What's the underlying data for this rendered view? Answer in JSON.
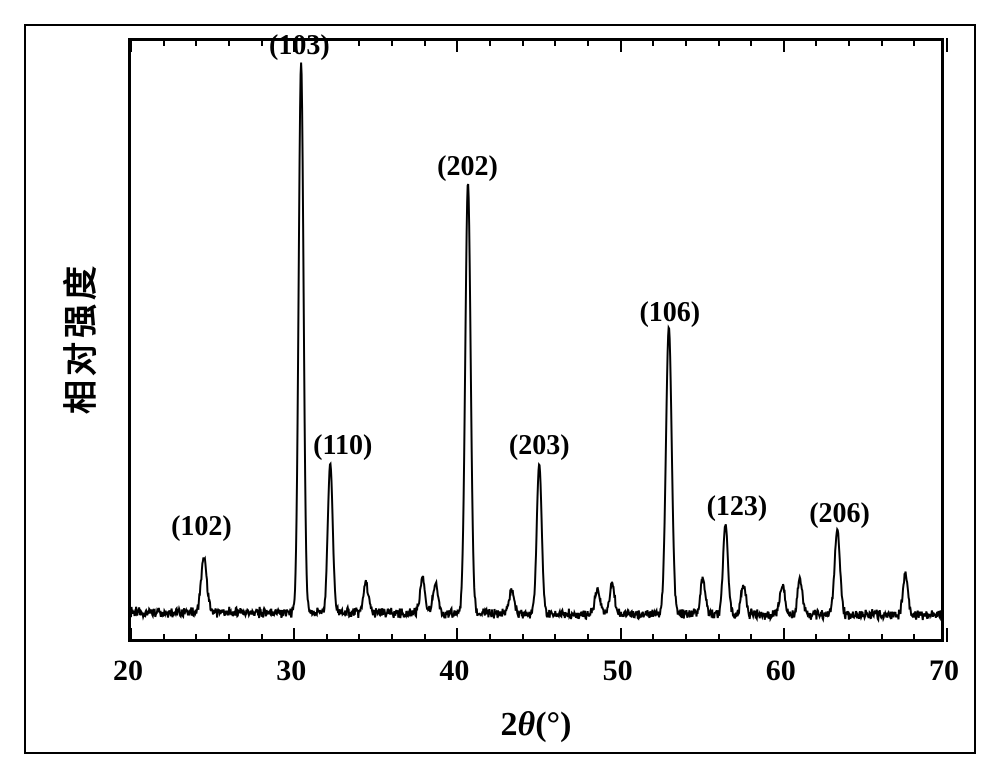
{
  "chart": {
    "type": "line",
    "background_color": "#ffffff",
    "border_color": "#000000",
    "border_width": 3,
    "line_color": "#000000",
    "line_width": 2,
    "font_family": "Times New Roman",
    "axis": {
      "x": {
        "min": 20,
        "max": 70,
        "major_ticks": [
          20,
          30,
          40,
          50,
          60,
          70
        ],
        "minor_step": 2,
        "label": "2θ(°)",
        "label_html_prefix": "2",
        "label_html_theta": "θ",
        "label_html_suffix": "(°)",
        "label_fontsize": 34,
        "tick_fontsize": 30
      },
      "y": {
        "label": "相对强度",
        "label_fontsize": 34,
        "show_ticks": false
      }
    },
    "tick_labels": {
      "20": "20",
      "30": "30",
      "40": "40",
      "50": "50",
      "60": "60",
      "70": "70"
    },
    "baseline": 0.04,
    "noise_amplitude": 0.02,
    "peaks": [
      {
        "x": 24.5,
        "height": 0.09,
        "width": 0.35,
        "label": "(102)",
        "label_y_offset": 50
      },
      {
        "x": 30.5,
        "height": 0.92,
        "width": 0.3,
        "label": "(103)",
        "label_y_offset": 30
      },
      {
        "x": 32.3,
        "height": 0.25,
        "width": 0.3,
        "label": "(110)",
        "label_y_offset": 35,
        "label_x_offset": 14
      },
      {
        "x": 34.5,
        "height": 0.05,
        "width": 0.3,
        "label": null
      },
      {
        "x": 38.0,
        "height": 0.06,
        "width": 0.3,
        "label": null
      },
      {
        "x": 38.8,
        "height": 0.05,
        "width": 0.3,
        "label": null
      },
      {
        "x": 40.8,
        "height": 0.72,
        "width": 0.33,
        "label": "(202)",
        "label_y_offset": 30
      },
      {
        "x": 43.5,
        "height": 0.04,
        "width": 0.3,
        "label": null
      },
      {
        "x": 45.2,
        "height": 0.25,
        "width": 0.3,
        "label": "(203)",
        "label_y_offset": 35
      },
      {
        "x": 48.8,
        "height": 0.04,
        "width": 0.3,
        "label": null
      },
      {
        "x": 49.7,
        "height": 0.05,
        "width": 0.3,
        "label": null
      },
      {
        "x": 53.2,
        "height": 0.48,
        "width": 0.35,
        "label": "(106)",
        "label_y_offset": 30
      },
      {
        "x": 55.3,
        "height": 0.06,
        "width": 0.3,
        "label": null
      },
      {
        "x": 56.7,
        "height": 0.15,
        "width": 0.3,
        "label": "(123)",
        "label_y_offset": 35,
        "label_x_offset": 10
      },
      {
        "x": 57.8,
        "height": 0.05,
        "width": 0.3,
        "label": null
      },
      {
        "x": 60.2,
        "height": 0.05,
        "width": 0.3,
        "label": null
      },
      {
        "x": 61.3,
        "height": 0.06,
        "width": 0.3,
        "label": null
      },
      {
        "x": 63.6,
        "height": 0.14,
        "width": 0.33,
        "label": "(206)",
        "label_y_offset": 35
      },
      {
        "x": 67.8,
        "height": 0.07,
        "width": 0.3,
        "label": null
      }
    ]
  }
}
